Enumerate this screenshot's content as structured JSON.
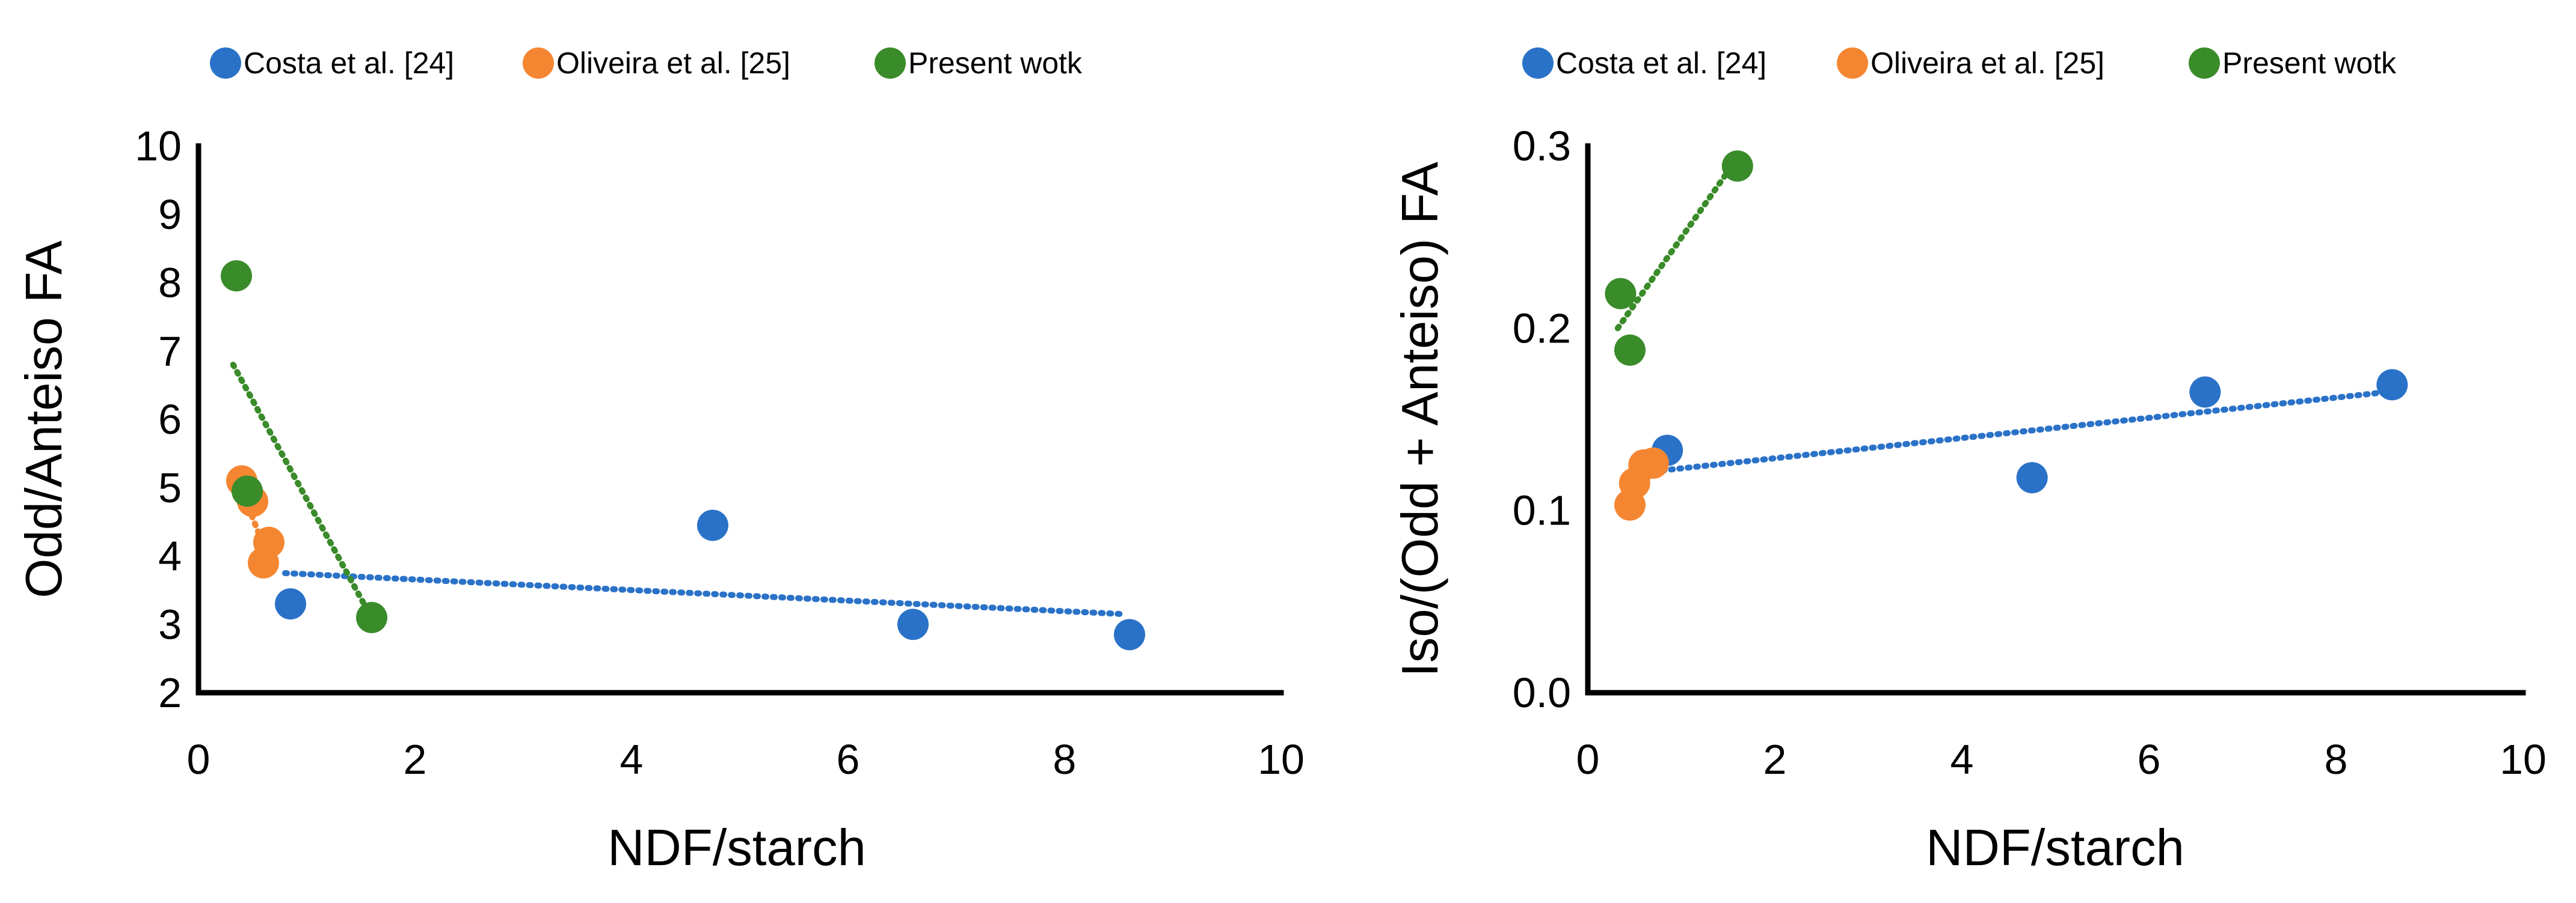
{
  "chart_data": [
    {
      "type": "scatter",
      "title": "",
      "xlabel": "NDF/starch",
      "ylabel": "Odd/Anteiso FA",
      "xlim": [
        0,
        10
      ],
      "ylim": [
        2,
        10
      ],
      "xticks": [
        "0",
        "2",
        "4",
        "6",
        "8",
        "10"
      ],
      "yticks": [
        "2",
        "3",
        "4",
        "5",
        "6",
        "7",
        "8",
        "9",
        "10"
      ],
      "legend": {
        "placement": "top"
      },
      "series": [
        {
          "name": "Costa et al. [24]",
          "color": "#2A72C8",
          "points": [
            [
              0.85,
              3.3
            ],
            [
              4.75,
              4.45
            ],
            [
              6.6,
              3.0
            ],
            [
              8.6,
              2.85
            ]
          ],
          "trendline": [
            [
              0.8,
              3.75
            ],
            [
              8.55,
              3.15
            ]
          ]
        },
        {
          "name": "Oliveira et al. [25]",
          "color": "#F58631",
          "points": [
            [
              0.4,
              5.1
            ],
            [
              0.5,
              4.8
            ],
            [
              0.65,
              4.2
            ],
            [
              0.6,
              3.9
            ]
          ],
          "trendline": [
            [
              0.38,
              5.05
            ],
            [
              0.65,
              3.95
            ]
          ]
        },
        {
          "name": "Present wotk",
          "color": "#3A8B2A",
          "points": [
            [
              0.35,
              8.1
            ],
            [
              0.45,
              4.95
            ],
            [
              1.6,
              3.1
            ]
          ],
          "trendline": [
            [
              0.32,
              6.8
            ],
            [
              1.58,
              3.15
            ]
          ]
        }
      ]
    },
    {
      "type": "scatter",
      "title": "",
      "xlabel": "NDF/starch",
      "ylabel": "Iso/(Odd + Anteiso) FA",
      "xlim": [
        0,
        10
      ],
      "ylim": [
        0.0,
        0.3
      ],
      "xticks": [
        "0",
        "2",
        "4",
        "6",
        "8",
        "10"
      ],
      "yticks": [
        "0.0",
        "0.1",
        "0.2",
        "0.3"
      ],
      "legend": {
        "placement": "top"
      },
      "series": [
        {
          "name": "Costa et al. [24]",
          "color": "#2A72C8",
          "points": [
            [
              0.85,
              0.133
            ],
            [
              4.75,
              0.118
            ],
            [
              6.6,
              0.165
            ],
            [
              8.6,
              0.169
            ]
          ],
          "trendline": [
            [
              0.8,
              0.122
            ],
            [
              8.55,
              0.165
            ]
          ]
        },
        {
          "name": "Oliveira et al. [25]",
          "color": "#F58631",
          "points": [
            [
              0.45,
              0.103
            ],
            [
              0.5,
              0.115
            ],
            [
              0.6,
              0.125
            ],
            [
              0.7,
              0.126
            ]
          ],
          "trendline": [
            [
              0.42,
              0.108
            ],
            [
              0.7,
              0.126
            ]
          ]
        },
        {
          "name": "Present wotk",
          "color": "#3A8B2A",
          "points": [
            [
              0.35,
              0.219
            ],
            [
              0.45,
              0.188
            ],
            [
              1.6,
              0.289
            ]
          ],
          "trendline": [
            [
              0.32,
              0.2
            ],
            [
              1.58,
              0.292
            ]
          ]
        }
      ]
    }
  ]
}
